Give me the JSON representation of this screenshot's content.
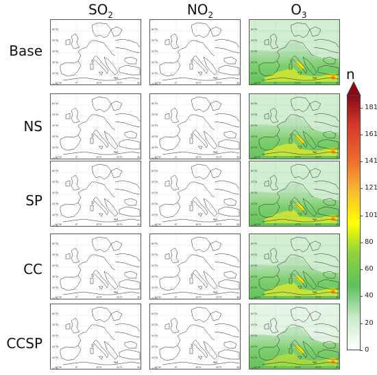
{
  "columns": [
    {
      "name": "SO",
      "sub": "2"
    },
    {
      "name": "NO",
      "sub": "2"
    },
    {
      "name": "O",
      "sub": "3"
    }
  ],
  "rows": [
    "Base",
    "NS",
    "SP",
    "CC",
    "CCSP"
  ],
  "lat_labels": [
    "60°N",
    "55°N",
    "50°N",
    "45°N",
    "40°N",
    "35°N"
  ],
  "lon_labels": [
    "10°W",
    "0°",
    "10°E",
    "20°E",
    "30°E"
  ],
  "colorbar": {
    "title": "n",
    "ticks": [
      "0",
      "20",
      "40",
      "60",
      "80",
      "101",
      "121",
      "141",
      "161",
      "181"
    ],
    "colors": [
      "#ffffff",
      "#c8e8c8",
      "#5ec05e",
      "#8ed23c",
      "#ffff00",
      "#f7b730",
      "#ee6a2e",
      "#d83a2a",
      "#8b0a1a"
    ]
  }
}
